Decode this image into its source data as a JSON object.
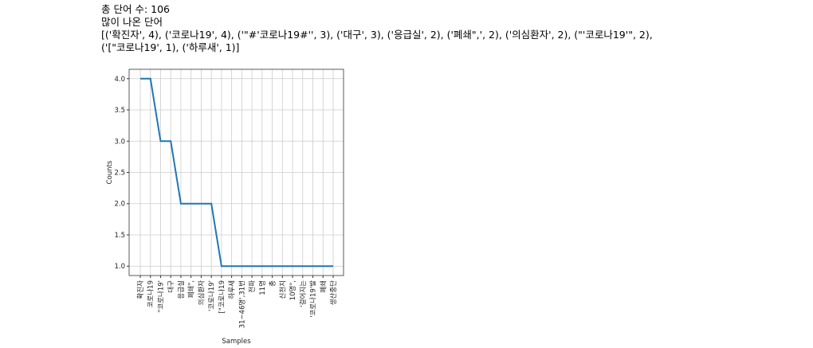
{
  "output_lines": [
    "총 단어 수: 106",
    "많이 나온 단어",
    "[('확진자', 4), ('코로나19', 4), ('\"#'코로나19#'', 3), ('대구', 3), ('응급실', 2), ('폐쇄\",', 2), ('의심환자', 2), (\"'코로나19'\", 2),",
    "('[\"코로나19', 1), ('하루새', 1)]"
  ],
  "chart_data": {
    "type": "line",
    "categories": [
      "확진자",
      "코로나19",
      "\"코로나19'",
      "대구",
      "응급실",
      "폐쇄\",",
      "의심환자",
      "'코로나19'",
      "[\"코로나19",
      "하루새",
      "31~46명',31번",
      "전파",
      "11명",
      "총",
      "신천지",
      "10명\",",
      "'걸어지는",
      "'코로나19'발",
      "폐쇄",
      "생산중단"
    ],
    "series": [
      {
        "name": "Counts",
        "color": "#1f77b4",
        "values": [
          4,
          4,
          3,
          3,
          2,
          2,
          2,
          2,
          1,
          1,
          1,
          1,
          1,
          1,
          1,
          1,
          1,
          1,
          1,
          1
        ]
      }
    ],
    "xlabel": "Samples",
    "ylabel": "Counts",
    "ylim": [
      0.85,
      4.15
    ],
    "yticks": [
      {
        "value": 1,
        "label": "1.0"
      },
      {
        "value": 1.5,
        "label": "1.5"
      },
      {
        "value": 2,
        "label": "2.0"
      },
      {
        "value": 2.5,
        "label": "2.5"
      },
      {
        "value": 3,
        "label": "3.0"
      },
      {
        "value": 3.5,
        "label": "3.5"
      },
      {
        "value": 4,
        "label": "4.0"
      }
    ],
    "grid": true
  }
}
